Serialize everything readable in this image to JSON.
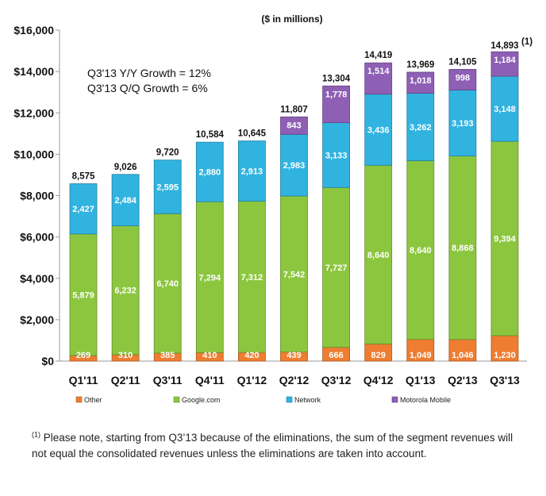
{
  "chart_data": {
    "type": "bar",
    "stacked": true,
    "subtitle": "($ in millions)",
    "categories": [
      "Q1'11",
      "Q2'11",
      "Q3'11",
      "Q4'11",
      "Q1'12",
      "Q2'12",
      "Q3'12",
      "Q4'12",
      "Q1'13",
      "Q2'13",
      "Q3'13"
    ],
    "series": [
      {
        "name": "Other",
        "color": "#ee7d31",
        "values": [
          269,
          310,
          385,
          410,
          420,
          439,
          666,
          829,
          1049,
          1046,
          1230
        ]
      },
      {
        "name": "Google.com",
        "color": "#8cc63f",
        "values": [
          5879,
          6232,
          6740,
          7294,
          7312,
          7542,
          7727,
          8640,
          8640,
          8868,
          9394
        ]
      },
      {
        "name": "Network",
        "color": "#31b3e0",
        "values": [
          2427,
          2484,
          2595,
          2880,
          2913,
          2983,
          3133,
          3436,
          3262,
          3193,
          3148
        ]
      },
      {
        "name": "Motorola Mobile",
        "color": "#8e5fb4",
        "values": [
          null,
          null,
          null,
          null,
          null,
          843,
          1778,
          1514,
          1018,
          998,
          1184
        ]
      }
    ],
    "segment_labels": [
      [
        "269",
        "310",
        "385",
        "410",
        "420",
        "439",
        "666",
        "829",
        "1,049",
        "1,046",
        "1,230"
      ],
      [
        "5,879",
        "6,232",
        "6,740",
        "7,294",
        "7,312",
        "7,542",
        "7,727",
        "8,640",
        "8,640",
        "8,868",
        "9,394"
      ],
      [
        "2,427",
        "2,484",
        "2,595",
        "2,880",
        "2,913",
        "2,983",
        "3,133",
        "3,436",
        "3,262",
        "3,193",
        "3,148"
      ],
      [
        "",
        "",
        "",
        "",
        "",
        "843",
        "1,778",
        "1,514",
        "1,018",
        "998",
        "1,184"
      ]
    ],
    "totals": [
      8575,
      9026,
      9720,
      10584,
      10645,
      11807,
      13304,
      14419,
      13969,
      14105,
      14893
    ],
    "total_labels": [
      "8,575",
      "9,026",
      "9,720",
      "10,584",
      "10,645",
      "11,807",
      "13,304",
      "14,419",
      "13,969",
      "14,105",
      "14,893"
    ],
    "total_footnote_marker": "(1)",
    "ylim": [
      0,
      16000
    ],
    "yticks": [
      0,
      2000,
      4000,
      6000,
      8000,
      10000,
      12000,
      14000,
      16000
    ],
    "ytick_labels": [
      "$0",
      "$2,000",
      "$4,000",
      "$6,000",
      "$8,000",
      "$10,000",
      "$12,000",
      "$14,000",
      "$16,000"
    ],
    "annotations": [
      "Q3'13 Y/Y Growth = 12%",
      "Q3'13 Q/Q Growth = 6%"
    ],
    "legend_position": "bottom",
    "grid": false
  },
  "footnote": {
    "marker": "(1)",
    "text": " Please note, starting from Q3’13 because of the eliminations, the sum of the segment revenues will not equal the consolidated revenues unless the eliminations are taken into account."
  }
}
